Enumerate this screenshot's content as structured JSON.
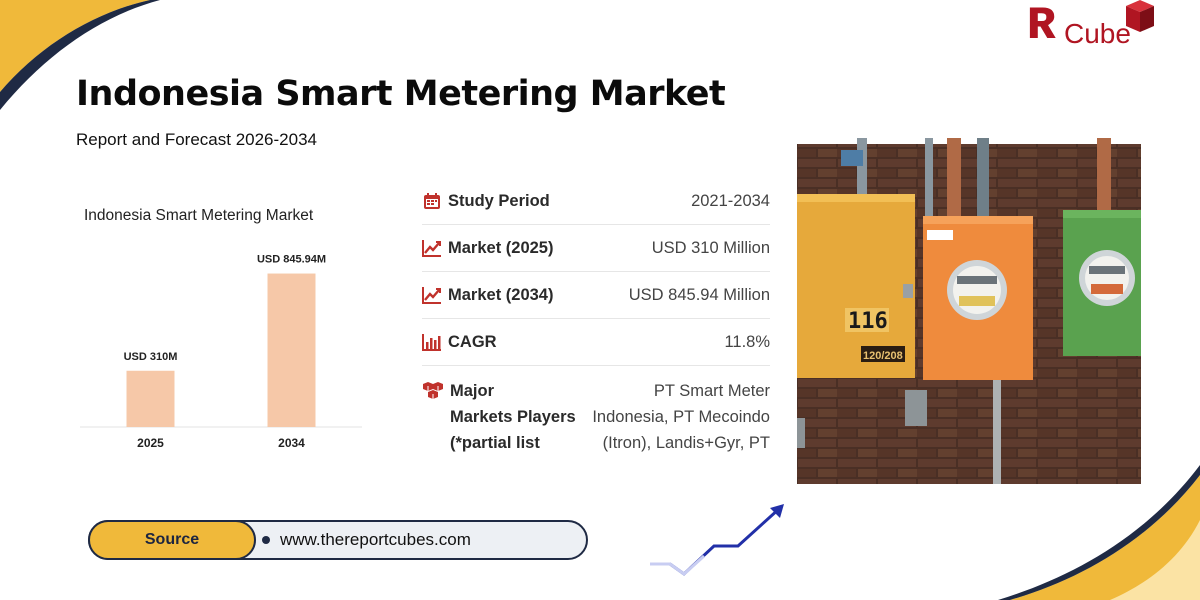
{
  "header": {
    "title": "Indonesia Smart Metering Market",
    "subtitle": "Report and Forecast 2026-2034"
  },
  "logo": {
    "mark": "Я",
    "text": "Cube"
  },
  "chart_data": {
    "type": "bar",
    "title": "Indonesia Smart Metering Market",
    "categories": [
      "2025",
      "2034"
    ],
    "values": [
      310,
      845.94
    ],
    "value_labels": [
      "USD 310M",
      "USD 845.94M"
    ],
    "ylim": [
      0,
      1000
    ],
    "grid": false,
    "bar_color": "#f6c8a8"
  },
  "info_table": {
    "rows": [
      {
        "icon": "calendar-icon",
        "label": "Study Period",
        "value": "2021-2034"
      },
      {
        "icon": "trend-up-icon",
        "label": "Market (2025)",
        "value": "USD 310 Million"
      },
      {
        "icon": "trend-up-icon",
        "label": "Market (2034)",
        "value": "USD 845.94 Million"
      },
      {
        "icon": "bar-chart-icon",
        "label": "CAGR",
        "value": "11.8%"
      }
    ],
    "players": {
      "icon": "cubes-icon",
      "label_lines": [
        "Major",
        "Markets Players",
        "(*partial list"
      ],
      "value_lines": [
        "PT Smart Meter",
        "Indonesia, PT Mecoindo",
        "(Itron), Landis+Gyr, PT"
      ]
    }
  },
  "photo": {
    "meter_number": "116",
    "meter_voltage": "120/208"
  },
  "source": {
    "label": "Source",
    "url": "www.thereportcubes.com"
  },
  "colors": {
    "brand_red": "#b01522",
    "accent_yellow": "#f0b93a",
    "navy": "#1f2a44",
    "icon_red": "#c0322c"
  }
}
